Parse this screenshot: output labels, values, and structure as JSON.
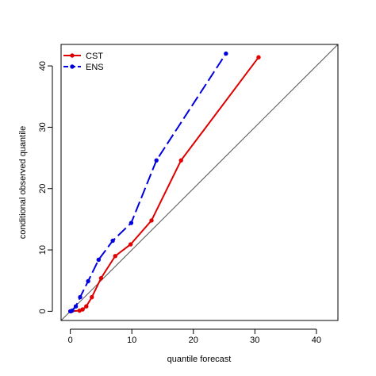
{
  "chart_data": {
    "type": "line",
    "xlabel": "quantile forecast",
    "ylabel": "conditional observed quantile",
    "xlim": [
      -1.5,
      43.5
    ],
    "ylim": [
      -1.5,
      43.5
    ],
    "xticks": [
      0,
      10,
      20,
      30,
      40
    ],
    "yticks": [
      0,
      10,
      20,
      30,
      40
    ],
    "grid": false,
    "legend_position": "top-left",
    "reference_line": "y = x",
    "series": [
      {
        "name": "CST",
        "color": "#e00000",
        "line_style": "solid",
        "points": [
          {
            "x": 0.1,
            "y": 0.0
          },
          {
            "x": 1.5,
            "y": 0.1
          },
          {
            "x": 2.0,
            "y": 0.3
          },
          {
            "x": 2.6,
            "y": 0.8
          },
          {
            "x": 3.5,
            "y": 2.3
          },
          {
            "x": 5.0,
            "y": 5.4
          },
          {
            "x": 7.3,
            "y": 9.0
          },
          {
            "x": 9.8,
            "y": 10.9
          },
          {
            "x": 13.2,
            "y": 14.8
          },
          {
            "x": 18.0,
            "y": 24.6
          },
          {
            "x": 30.6,
            "y": 41.4
          }
        ]
      },
      {
        "name": "ENS",
        "color": "#0000e0",
        "line_style": "dashed",
        "points": [
          {
            "x": 0.0,
            "y": 0.0
          },
          {
            "x": 0.3,
            "y": 0.1
          },
          {
            "x": 0.9,
            "y": 0.8
          },
          {
            "x": 1.6,
            "y": 2.3
          },
          {
            "x": 2.9,
            "y": 4.9
          },
          {
            "x": 4.6,
            "y": 8.4
          },
          {
            "x": 6.9,
            "y": 11.5
          },
          {
            "x": 9.9,
            "y": 14.4
          },
          {
            "x": 14.0,
            "y": 24.6
          },
          {
            "x": 25.3,
            "y": 42.0
          }
        ]
      }
    ]
  }
}
